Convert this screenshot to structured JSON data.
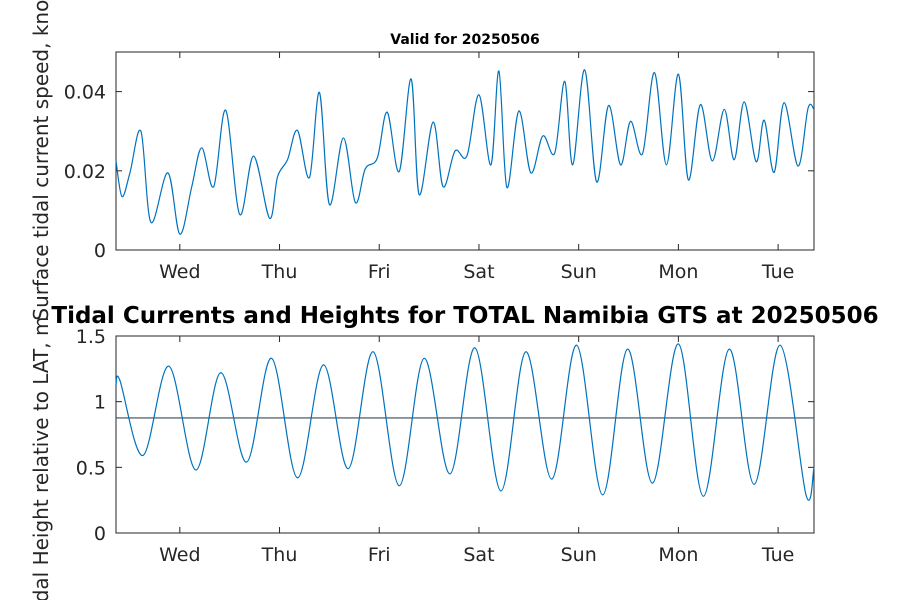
{
  "chart_data": [
    {
      "type": "line",
      "title": "Valid for 20250506",
      "ylabel": "Surface tidal current speed, knots",
      "ylim": [
        0,
        0.05
      ],
      "yticks": [
        0,
        0.02,
        0.04
      ],
      "ytick_labels": [
        "0",
        "0.02",
        "0.04"
      ],
      "xlim": [
        0,
        7
      ],
      "xtick_positions": [
        0.64,
        1.64,
        2.64,
        3.64,
        4.64,
        5.64,
        6.64
      ],
      "xtick_labels": [
        "Wed",
        "Thu",
        "Fri",
        "Sat",
        "Sun",
        "Mon",
        "Tue"
      ],
      "series": [
        {
          "color": "#0072BD",
          "x": [
            0,
            0.06,
            0.14,
            0.25,
            0.35,
            0.52,
            0.64,
            0.76,
            0.86,
            0.98,
            1.1,
            1.24,
            1.38,
            1.54,
            1.62,
            1.72,
            1.82,
            1.94,
            2.04,
            2.14,
            2.28,
            2.4,
            2.5,
            2.62,
            2.72,
            2.84,
            2.96,
            3.04,
            3.18,
            3.28,
            3.4,
            3.52,
            3.64,
            3.76,
            3.84,
            3.92,
            4.04,
            4.16,
            4.28,
            4.4,
            4.5,
            4.58,
            4.7,
            4.82,
            4.94,
            5.06,
            5.16,
            5.28,
            5.4,
            5.52,
            5.64,
            5.74,
            5.86,
            5.98,
            6.1,
            6.2,
            6.3,
            6.42,
            6.5,
            6.6,
            6.7,
            6.84,
            6.94,
            7.0
          ],
          "y": [
            0.0225,
            0.0135,
            0.0195,
            0.03,
            0.007,
            0.0195,
            0.004,
            0.016,
            0.0258,
            0.016,
            0.0353,
            0.009,
            0.0237,
            0.008,
            0.0185,
            0.0228,
            0.0302,
            0.0183,
            0.0398,
            0.0115,
            0.0283,
            0.012,
            0.0205,
            0.0232,
            0.0348,
            0.0198,
            0.0432,
            0.014,
            0.0323,
            0.016,
            0.025,
            0.0238,
            0.0392,
            0.0215,
            0.0452,
            0.0158,
            0.0351,
            0.0195,
            0.0288,
            0.0245,
            0.0426,
            0.0215,
            0.0455,
            0.0172,
            0.0365,
            0.0215,
            0.0325,
            0.0243,
            0.0448,
            0.0215,
            0.0444,
            0.0177,
            0.0367,
            0.0225,
            0.0355,
            0.0228,
            0.0374,
            0.0223,
            0.0328,
            0.0196,
            0.0372,
            0.0212,
            0.0358,
            0.0355
          ]
        }
      ]
    },
    {
      "type": "line",
      "title": "Tidal Currents and Heights for TOTAL Namibia GTS at 20250506",
      "ylabel": "Tidal Height relative to LAT, m",
      "ylim": [
        0,
        1.5
      ],
      "yticks": [
        0,
        0.5,
        1,
        1.5
      ],
      "ytick_labels": [
        "0",
        "0.5",
        "1",
        "1.5"
      ],
      "xlim": [
        0,
        7
      ],
      "xtick_positions": [
        0.64,
        1.64,
        2.64,
        3.64,
        4.64,
        5.64,
        6.64
      ],
      "xtick_labels": [
        "Wed",
        "Thu",
        "Fri",
        "Sat",
        "Sun",
        "Mon",
        "Tue"
      ],
      "reference_line": 0.876,
      "reference_color": "#3a4a5a",
      "series": [
        {
          "color": "#0072BD",
          "x": [
            0,
            0.04,
            0.27,
            0.53,
            0.8,
            1.05,
            1.31,
            1.56,
            1.82,
            2.08,
            2.33,
            2.58,
            2.84,
            3.09,
            3.35,
            3.6,
            3.86,
            4.11,
            4.37,
            4.62,
            4.88,
            5.13,
            5.38,
            5.64,
            5.89,
            6.15,
            6.4,
            6.66,
            6.92,
            7.0
          ],
          "y": [
            1.13,
            1.16,
            0.59,
            1.27,
            0.48,
            1.22,
            0.54,
            1.33,
            0.42,
            1.28,
            0.49,
            1.38,
            0.36,
            1.33,
            0.45,
            1.41,
            0.32,
            1.38,
            0.41,
            1.43,
            0.29,
            1.4,
            0.38,
            1.44,
            0.28,
            1.4,
            0.37,
            1.43,
            0.29,
            0.5
          ]
        }
      ]
    }
  ]
}
